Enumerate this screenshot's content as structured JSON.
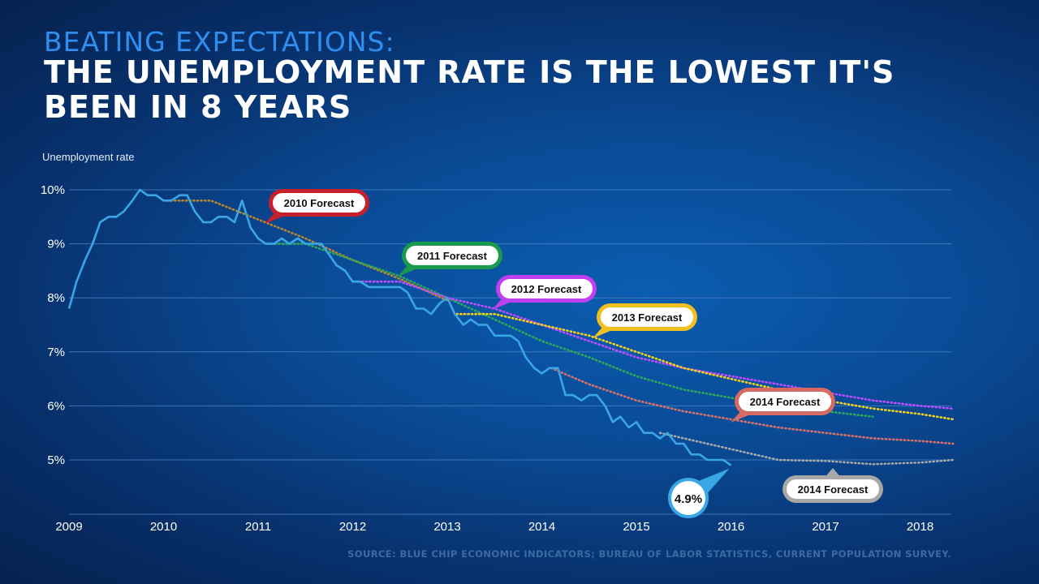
{
  "header": {
    "kicker": "BEATING EXPECTATIONS:",
    "headline": "THE UNEMPLOYMENT RATE IS THE LOWEST IT'S BEEN IN 8 YEARS"
  },
  "source": "SOURCE: BLUE CHIP ECONOMIC INDICATORS; BUREAU OF LABOR STATISTICS, CURRENT POPULATION SURVEY.",
  "chart_data": {
    "type": "line",
    "ylabel": "Unemployment rate",
    "xlabel": "",
    "xlim": [
      2009,
      2018.35
    ],
    "ylim": [
      4,
      10
    ],
    "grid": true,
    "x_ticks": [
      "2009",
      "2010",
      "2011",
      "2012",
      "2013",
      "2014",
      "2015",
      "2016",
      "2017",
      "2018"
    ],
    "y_ticks": [
      "10%",
      "9%",
      "8%",
      "7%",
      "6%",
      "5%"
    ],
    "y_tick_values": [
      10,
      9,
      8,
      7,
      6,
      5
    ],
    "actual": {
      "color": "#39a6e6",
      "x": [
        2009.0,
        2009.08,
        2009.17,
        2009.25,
        2009.33,
        2009.42,
        2009.5,
        2009.58,
        2009.67,
        2009.75,
        2009.83,
        2009.92,
        2010.0,
        2010.08,
        2010.17,
        2010.25,
        2010.33,
        2010.42,
        2010.5,
        2010.58,
        2010.67,
        2010.75,
        2010.83,
        2010.92,
        2011.0,
        2011.08,
        2011.17,
        2011.25,
        2011.33,
        2011.42,
        2011.5,
        2011.58,
        2011.67,
        2011.75,
        2011.83,
        2011.92,
        2012.0,
        2012.08,
        2012.17,
        2012.25,
        2012.33,
        2012.42,
        2012.5,
        2012.58,
        2012.67,
        2012.75,
        2012.83,
        2012.92,
        2013.0,
        2013.08,
        2013.17,
        2013.25,
        2013.33,
        2013.42,
        2013.5,
        2013.58,
        2013.67,
        2013.75,
        2013.83,
        2013.92,
        2014.0,
        2014.08,
        2014.17,
        2014.25,
        2014.33,
        2014.42,
        2014.5,
        2014.58,
        2014.67,
        2014.75,
        2014.83,
        2014.92,
        2015.0,
        2015.08,
        2015.17,
        2015.25,
        2015.33,
        2015.42,
        2015.5,
        2015.58,
        2015.67,
        2015.75,
        2015.83,
        2015.92,
        2016.0
      ],
      "y": [
        7.8,
        8.3,
        8.7,
        9.0,
        9.4,
        9.5,
        9.5,
        9.6,
        9.8,
        10.0,
        9.9,
        9.9,
        9.8,
        9.8,
        9.9,
        9.9,
        9.6,
        9.4,
        9.4,
        9.5,
        9.5,
        9.4,
        9.8,
        9.3,
        9.1,
        9.0,
        9.0,
        9.1,
        9.0,
        9.1,
        9.0,
        9.0,
        9.0,
        8.8,
        8.6,
        8.5,
        8.3,
        8.3,
        8.2,
        8.2,
        8.2,
        8.2,
        8.2,
        8.1,
        7.8,
        7.8,
        7.7,
        7.9,
        8.0,
        7.7,
        7.5,
        7.6,
        7.5,
        7.5,
        7.3,
        7.3,
        7.3,
        7.2,
        6.9,
        6.7,
        6.6,
        6.7,
        6.7,
        6.2,
        6.2,
        6.1,
        6.2,
        6.2,
        6.0,
        5.7,
        5.8,
        5.6,
        5.7,
        5.5,
        5.5,
        5.4,
        5.5,
        5.3,
        5.3,
        5.1,
        5.1,
        5.0,
        5.0,
        5.0,
        4.9
      ]
    },
    "series": [
      {
        "name": "2010 Forecast",
        "color": "#b8862e",
        "label_color": "#c8202a",
        "x": [
          2010.0,
          2010.5,
          2011.0,
          2011.5,
          2012.0,
          2012.5,
          2013.0
        ],
        "y": [
          9.8,
          9.8,
          9.45,
          9.1,
          8.7,
          8.35,
          7.95
        ]
      },
      {
        "name": "2011 Forecast",
        "color": "#2da85a",
        "label_color": "#1a9a4c",
        "x": [
          2011.1,
          2011.5,
          2012.0,
          2012.5,
          2013.0,
          2013.5,
          2014.0,
          2014.5,
          2015.0,
          2015.5,
          2016.0,
          2016.5,
          2017.0,
          2017.5
        ],
        "y": [
          9.0,
          9.0,
          8.7,
          8.4,
          8.0,
          7.6,
          7.2,
          6.9,
          6.55,
          6.3,
          6.15,
          6.0,
          5.9,
          5.8
        ]
      },
      {
        "name": "2012 Forecast",
        "color": "#c04cff",
        "label_color": "#c040f0",
        "x": [
          2012.1,
          2012.5,
          2013.0,
          2013.5,
          2014.0,
          2014.5,
          2015.0,
          2015.5,
          2016.0,
          2016.5,
          2017.0,
          2017.5,
          2018.0,
          2018.35
        ],
        "y": [
          8.3,
          8.3,
          8.0,
          7.8,
          7.5,
          7.2,
          6.9,
          6.7,
          6.55,
          6.4,
          6.25,
          6.1,
          6.0,
          5.95
        ]
      },
      {
        "name": "2013 Forecast",
        "color": "#f2d21a",
        "label_color": "#f0c020",
        "x": [
          2013.1,
          2013.5,
          2014.0,
          2014.5,
          2015.0,
          2015.5,
          2016.0,
          2016.5,
          2017.0,
          2017.5,
          2018.0,
          2018.35
        ],
        "y": [
          7.7,
          7.7,
          7.5,
          7.3,
          7.0,
          6.7,
          6.5,
          6.3,
          6.1,
          5.95,
          5.85,
          5.75
        ]
      },
      {
        "name": "2014 Forecast",
        "color": "#d9716a",
        "label_color": "#d86a64",
        "x": [
          2014.1,
          2014.5,
          2015.0,
          2015.5,
          2016.0,
          2016.5,
          2017.0,
          2017.5,
          2018.0,
          2018.35
        ],
        "y": [
          6.7,
          6.4,
          6.1,
          5.9,
          5.75,
          5.6,
          5.5,
          5.4,
          5.35,
          5.3
        ]
      },
      {
        "name": "2014 Forecast",
        "color": "#a9a9a9",
        "label_color": "#a8a8a8",
        "x": [
          2015.25,
          2015.5,
          2016.0,
          2016.5,
          2017.0,
          2017.5,
          2018.0,
          2018.35
        ],
        "y": [
          5.5,
          5.4,
          5.2,
          5.0,
          4.98,
          4.92,
          4.95,
          5.0
        ]
      }
    ],
    "callout": {
      "text": "4.9%",
      "x": 2016.0,
      "y": 4.9,
      "color": "#39a6e6"
    }
  }
}
